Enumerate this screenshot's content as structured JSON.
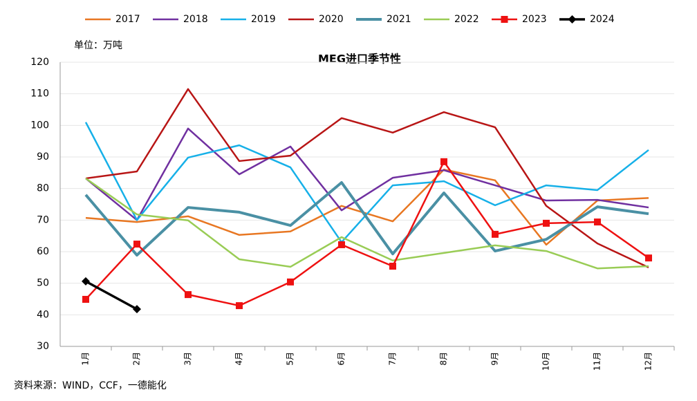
{
  "chart_data": {
    "type": "line",
    "title": "MEG进口季节性",
    "unit_label": "单位：万吨",
    "source": "资料来源：WIND，CCF，一德能化",
    "categories": [
      "1月",
      "2月",
      "3月",
      "4月",
      "5月",
      "6月",
      "7月",
      "8月",
      "9月",
      "10月",
      "11月",
      "12月"
    ],
    "ylim": [
      30,
      120
    ],
    "yticks": [
      30,
      40,
      50,
      60,
      70,
      80,
      90,
      100,
      110,
      120
    ],
    "grid": true,
    "legend": "top",
    "series": [
      {
        "name": "2017",
        "color": "#e87722",
        "values": [
          70.7,
          69.4,
          71.2,
          65.3,
          66.4,
          74.5,
          69.6,
          86,
          82.6,
          62.2,
          76.2,
          77
        ]
      },
      {
        "name": "2018",
        "color": "#7030a0",
        "values": [
          83.2,
          70,
          99,
          84.5,
          93.3,
          73.1,
          83.4,
          85.8,
          81,
          76.2,
          76.4,
          74
        ]
      },
      {
        "name": "2019",
        "color": "#16b0e8",
        "values": [
          101,
          70,
          89.8,
          93.7,
          86.7,
          63,
          81,
          82.3,
          74.7,
          81,
          79.5,
          92.2
        ]
      },
      {
        "name": "2020",
        "color": "#b81515",
        "values": [
          83.2,
          85.4,
          111.5,
          88.7,
          90.4,
          102.3,
          97.7,
          104.2,
          99.4,
          74.5,
          62.6,
          55
        ]
      },
      {
        "name": "2021",
        "color": "#4a90a4",
        "values": [
          78,
          58.9,
          74,
          72.5,
          68.3,
          81.9,
          59.3,
          78.6,
          60.2,
          63.9,
          74.2,
          72
        ]
      },
      {
        "name": "2022",
        "color": "#99cc55",
        "values": [
          83.2,
          71.8,
          69.9,
          57.6,
          55.2,
          64.6,
          57.2,
          59.6,
          62,
          60.2,
          54.7,
          55.4
        ]
      },
      {
        "name": "2023",
        "color": "#ee1111",
        "marker": "square",
        "values": [
          44.9,
          62.4,
          46.4,
          42.9,
          50.4,
          62.2,
          55.4,
          88.5,
          65.5,
          69,
          69.4,
          58
        ]
      },
      {
        "name": "2024",
        "color": "#000000",
        "marker": "diamond",
        "values": [
          50.6,
          41.8,
          null,
          null,
          null,
          null,
          null,
          null,
          null,
          null,
          null,
          null
        ]
      }
    ]
  }
}
